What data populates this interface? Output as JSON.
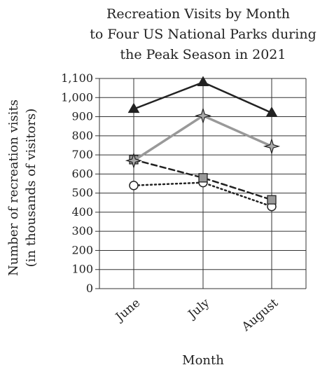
{
  "chart_data": {
    "type": "line",
    "title_lines": [
      "Recreation Visits by Month",
      "to Four US National Parks during",
      "the Peak Season in 2021"
    ],
    "xlabel": "Month",
    "ylabel_lines": [
      "Number of recreation visits",
      "(in thousands of visitors)"
    ],
    "categories": [
      "June",
      "July",
      "August"
    ],
    "ylim": [
      0,
      1100
    ],
    "y_ticks": [
      "0",
      "100",
      "200",
      "300",
      "400",
      "500",
      "600",
      "700",
      "800",
      "900",
      "1,000",
      "1,100"
    ],
    "grid": true,
    "series": [
      {
        "values": [
          940,
          1080,
          920
        ],
        "marker": "triangle",
        "line": "solid",
        "color": "#222222"
      },
      {
        "values": [
          670,
          905,
          745
        ],
        "marker": "star",
        "line": "solid",
        "color": "#999999"
      },
      {
        "values": [
          675,
          580,
          465
        ],
        "marker": "square",
        "line": "dashed",
        "color": "#222222"
      },
      {
        "values": [
          540,
          555,
          430
        ],
        "marker": "circle",
        "line": "dotted",
        "color": "#222222"
      }
    ]
  }
}
